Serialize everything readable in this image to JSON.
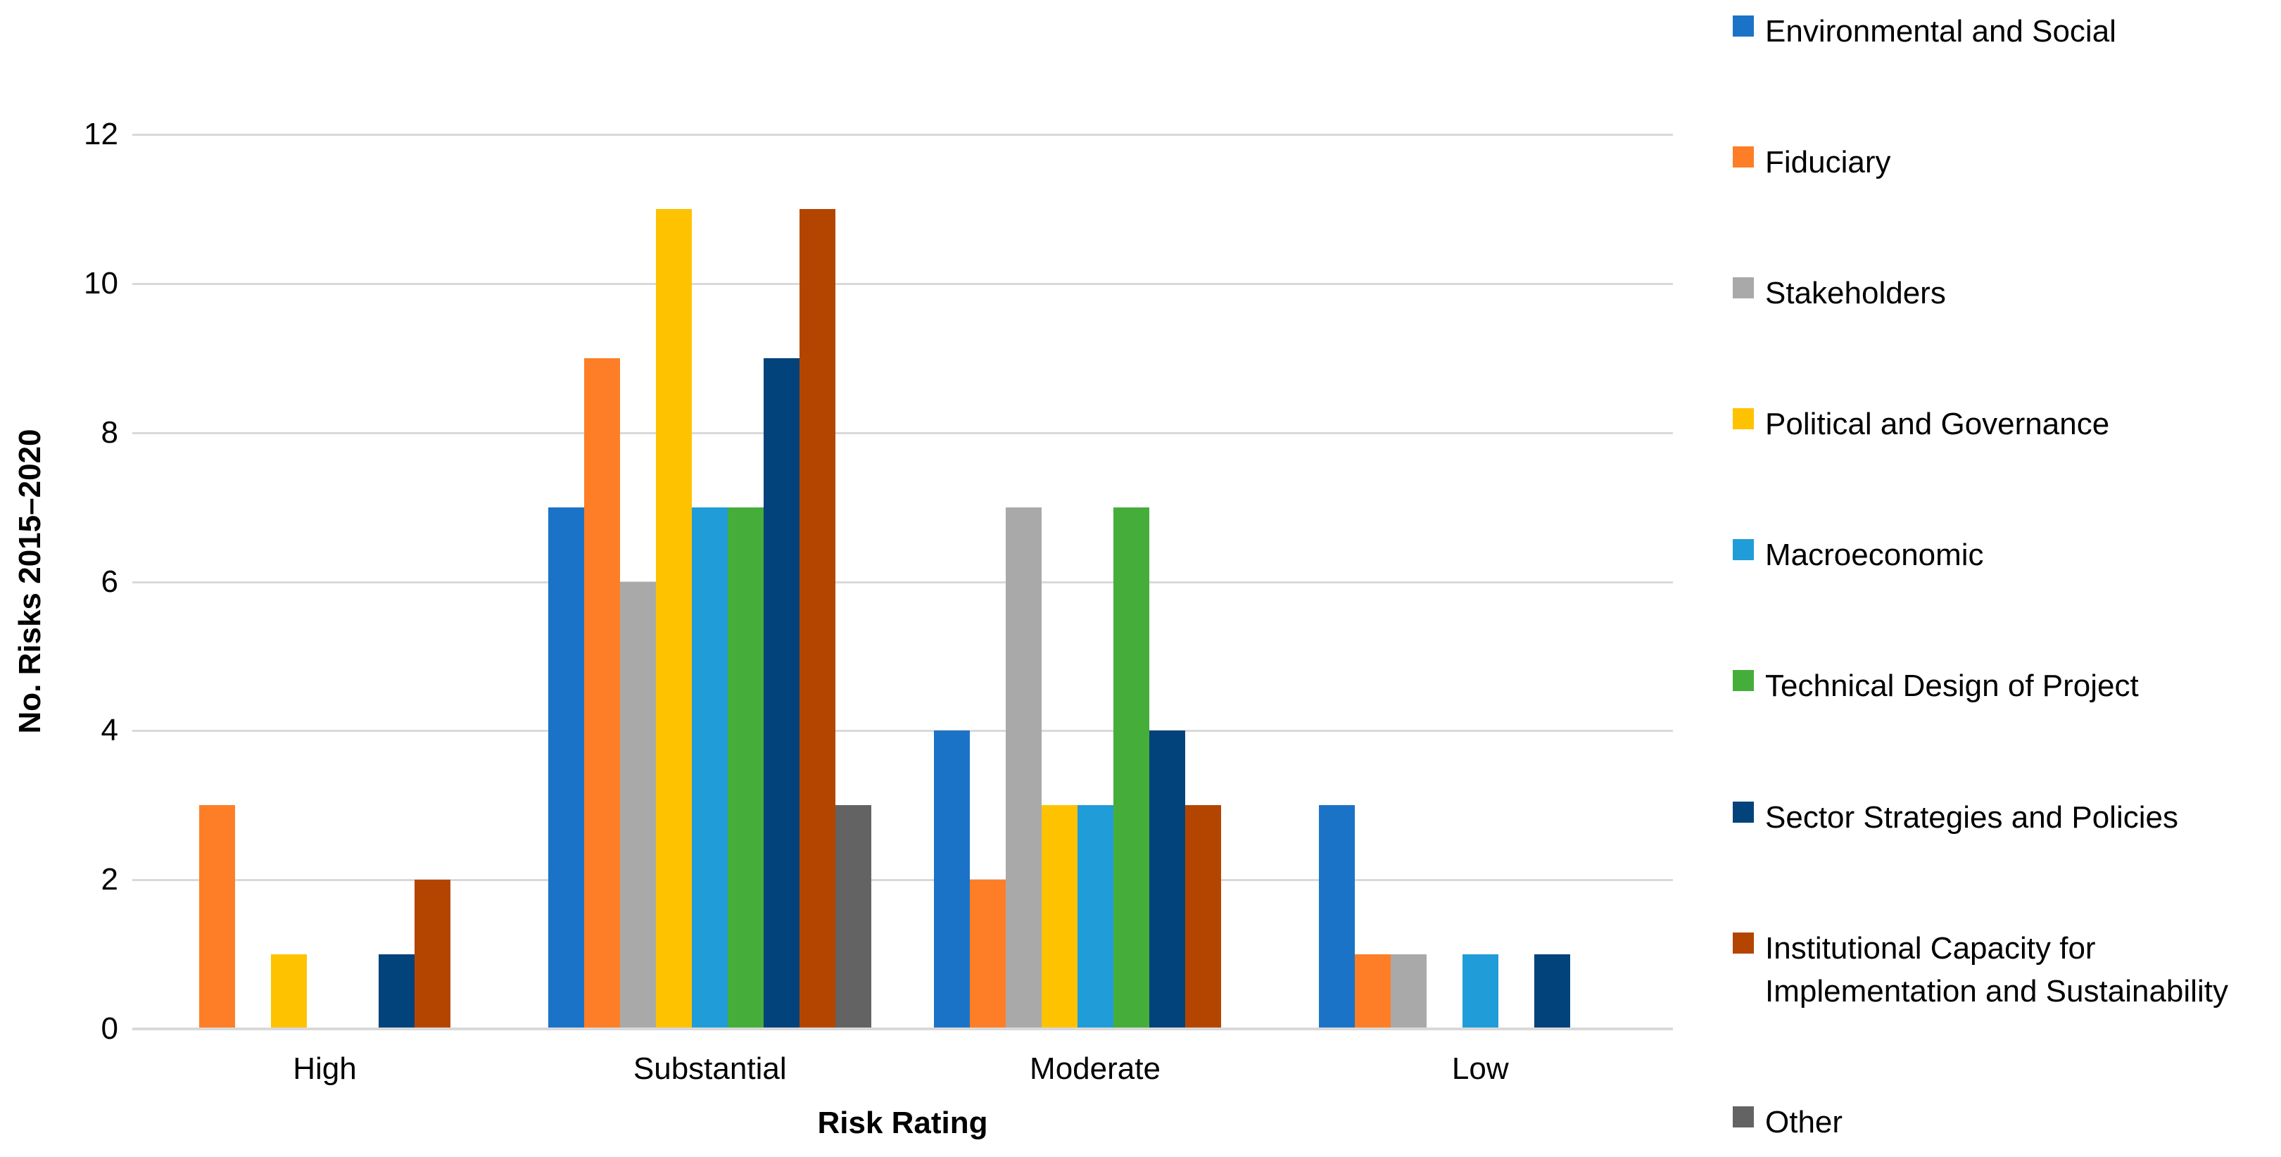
{
  "chart_data": {
    "type": "bar",
    "title": "",
    "categories": [
      "High",
      "Substantial",
      "Moderate",
      "Low"
    ],
    "series": [
      {
        "name": "Environmental and Social",
        "color": "#1B73C7",
        "values": [
          0,
          7,
          4,
          3
        ]
      },
      {
        "name": "Fiduciary",
        "color": "#FD7E26",
        "values": [
          3,
          9,
          2,
          1
        ]
      },
      {
        "name": "Stakeholders",
        "color": "#A9A9A9",
        "values": [
          0,
          6,
          7,
          1
        ]
      },
      {
        "name": "Political and Governance",
        "color": "#FFC200",
        "values": [
          1,
          11,
          3,
          0
        ]
      },
      {
        "name": "Macroeconomic",
        "color": "#209DD8",
        "values": [
          0,
          7,
          3,
          1
        ]
      },
      {
        "name": "Technical Design of Project",
        "color": "#45AE3B",
        "values": [
          0,
          7,
          7,
          0
        ]
      },
      {
        "name": "Sector Strategies and Policies",
        "color": "#01437A",
        "values": [
          1,
          9,
          4,
          1
        ]
      },
      {
        "name": "Institutional Capacity for Implementation and Sustainability",
        "color": "#B44500",
        "values": [
          2,
          11,
          3,
          0
        ]
      },
      {
        "name": "Other",
        "color": "#636363",
        "values": [
          0,
          3,
          0,
          0
        ]
      }
    ],
    "xlabel": "Risk Rating",
    "ylabel": "No. Risks 2015–2020",
    "ylim": [
      0,
      12
    ],
    "yticks": [
      0,
      2,
      4,
      6,
      8,
      10,
      12
    ],
    "grid": true,
    "legend_position": "right",
    "gridline_color": "#D9D9D9",
    "background": "#FFFFFF"
  }
}
